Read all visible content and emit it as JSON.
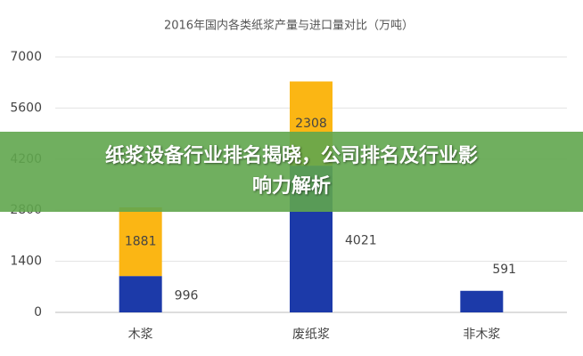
{
  "chart_data": {
    "type": "stacked-bar",
    "title": "2016年国内各类纸浆产量与进口量对比（万吨）",
    "categories": [
      "木浆",
      "废纸浆",
      "非木浆"
    ],
    "series": [
      {
        "color": "#1c3aa9",
        "values": [
          996,
          4021,
          591
        ]
      },
      {
        "color": "#fbb614",
        "values": [
          1881,
          2308,
          null
        ]
      }
    ],
    "ylim": [
      0,
      7000
    ],
    "yticks": [
      0,
      1400,
      2800,
      4200,
      5600,
      7000
    ],
    "grid": true
  },
  "overlay": {
    "lines": [
      "纸浆设备行业排名揭晓，公司排名及行业影",
      "响力解析"
    ]
  }
}
